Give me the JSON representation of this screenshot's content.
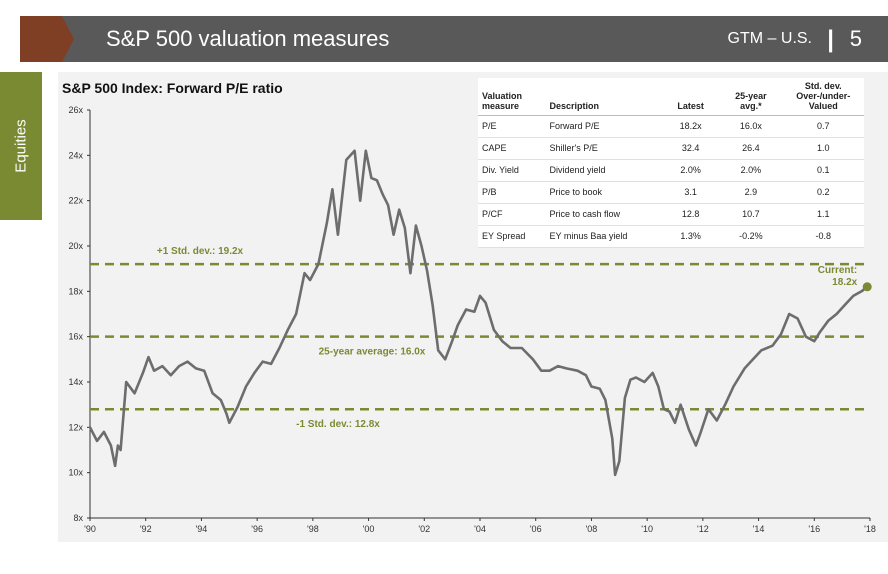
{
  "header": {
    "title": "S&P 500 valuation measures",
    "tag": "GTM – U.S.",
    "separator": "|",
    "page_number": "5",
    "accent_color": "#7f3f24",
    "bar_color": "#595959"
  },
  "sidebar": {
    "label": "Equities",
    "color": "#7a8a33"
  },
  "table": {
    "headers": [
      "Valuation measure",
      "Description",
      "Latest",
      "25-year avg.*",
      "Std. dev. Over-/under-Valued"
    ],
    "rows": [
      [
        "P/E",
        "Forward P/E",
        "18.2x",
        "16.0x",
        "0.7"
      ],
      [
        "CAPE",
        "Shiller's P/E",
        "32.4",
        "26.4",
        "1.0"
      ],
      [
        "Div. Yield",
        "Dividend yield",
        "2.0%",
        "2.0%",
        "0.1"
      ],
      [
        "P/B",
        "Price to book",
        "3.1",
        "2.9",
        "0.2"
      ],
      [
        "P/CF",
        "Price to cash flow",
        "12.8",
        "10.7",
        "1.1"
      ],
      [
        "EY Spread",
        "EY minus Baa yield",
        "1.3%",
        "-0.2%",
        "-0.8"
      ]
    ]
  },
  "chart_data": {
    "type": "line",
    "title": "S&P 500 Index: Forward P/E ratio",
    "xlabel": "",
    "ylabel": "",
    "xlim": [
      1990,
      2018
    ],
    "ylim": [
      8,
      26
    ],
    "x_ticks": [
      "'90",
      "'92",
      "'94",
      "'96",
      "'98",
      "'00",
      "'02",
      "'04",
      "'06",
      "'08",
      "'10",
      "'12",
      "'14",
      "'16",
      "'18"
    ],
    "y_ticks": [
      "8x",
      "10x",
      "12x",
      "14x",
      "16x",
      "18x",
      "20x",
      "22x",
      "24x",
      "26x"
    ],
    "grid": false,
    "line_color": "#6d6d6d",
    "reference_color": "#7a8a33",
    "reference_lines": [
      {
        "value": 19.2,
        "label": "+1 Std. dev.: 19.2x"
      },
      {
        "value": 16.0,
        "label": "25-year average: 16.0x"
      },
      {
        "value": 12.8,
        "label": "-1 Std. dev.: 12.8x"
      }
    ],
    "current": {
      "x": 2017.9,
      "value": 18.2,
      "label_line1": "Current:",
      "label_line2": "18.2x"
    },
    "series": [
      {
        "x": [
          1990.0,
          1990.25,
          1990.5,
          1990.75,
          1990.9,
          1991.0,
          1991.1,
          1991.3,
          1991.6,
          1991.9,
          1992.1,
          1992.3,
          1992.6,
          1992.9,
          1993.2,
          1993.5,
          1993.8,
          1994.1,
          1994.4,
          1994.7,
          1994.9,
          1995.0,
          1995.3,
          1995.6,
          1995.9,
          1996.2,
          1996.5,
          1996.8,
          1997.1,
          1997.4,
          1997.7,
          1997.9,
          1998.2,
          1998.5,
          1998.7,
          1998.9,
          1999.2,
          1999.5,
          1999.7,
          1999.9,
          2000.1,
          2000.3,
          2000.5,
          2000.7,
          2000.9,
          2001.1,
          2001.3,
          2001.5,
          2001.7,
          2001.9,
          2002.1,
          2002.3,
          2002.5,
          2002.75,
          2003.0,
          2003.2,
          2003.5,
          2003.8,
          2004.0,
          2004.2,
          2004.5,
          2004.8,
          2005.1,
          2005.5,
          2005.9,
          2006.2,
          2006.5,
          2006.8,
          2007.1,
          2007.5,
          2007.8,
          2008.0,
          2008.3,
          2008.5,
          2008.75,
          2008.85,
          2009.0,
          2009.2,
          2009.4,
          2009.6,
          2009.9,
          2010.2,
          2010.4,
          2010.6,
          2010.8,
          2011.0,
          2011.2,
          2011.5,
          2011.75,
          2011.9,
          2012.2,
          2012.5,
          2012.8,
          2013.1,
          2013.5,
          2013.8,
          2014.1,
          2014.5,
          2014.8,
          2015.1,
          2015.4,
          2015.7,
          2016.0,
          2016.2,
          2016.5,
          2016.8,
          2017.1,
          2017.4,
          2017.7,
          2017.9
        ],
        "values": [
          12.0,
          11.4,
          11.8,
          11.2,
          10.3,
          11.2,
          11.0,
          14.0,
          13.5,
          14.4,
          15.1,
          14.5,
          14.7,
          14.3,
          14.7,
          14.9,
          14.6,
          14.5,
          13.5,
          13.2,
          12.6,
          12.2,
          12.9,
          13.8,
          14.4,
          14.9,
          14.8,
          15.5,
          16.3,
          17.0,
          18.8,
          18.5,
          19.2,
          21.0,
          22.5,
          20.5,
          23.8,
          24.2,
          22.0,
          24.2,
          23.0,
          22.9,
          22.3,
          21.8,
          20.5,
          21.6,
          20.8,
          18.8,
          20.9,
          20.0,
          18.9,
          17.4,
          15.4,
          15.0,
          15.8,
          16.5,
          17.2,
          17.1,
          17.8,
          17.5,
          16.3,
          15.8,
          15.5,
          15.5,
          15.0,
          14.5,
          14.5,
          14.7,
          14.6,
          14.5,
          14.3,
          13.8,
          13.7,
          13.2,
          11.5,
          9.9,
          10.5,
          13.3,
          14.1,
          14.2,
          14.0,
          14.4,
          13.8,
          12.8,
          12.7,
          12.2,
          13.0,
          11.9,
          11.2,
          11.7,
          12.8,
          12.3,
          13.0,
          13.8,
          14.6,
          15.0,
          15.4,
          15.6,
          16.1,
          17.0,
          16.8,
          16.0,
          15.8,
          16.2,
          16.7,
          17.0,
          17.4,
          17.8,
          18.0,
          18.2
        ]
      }
    ]
  }
}
